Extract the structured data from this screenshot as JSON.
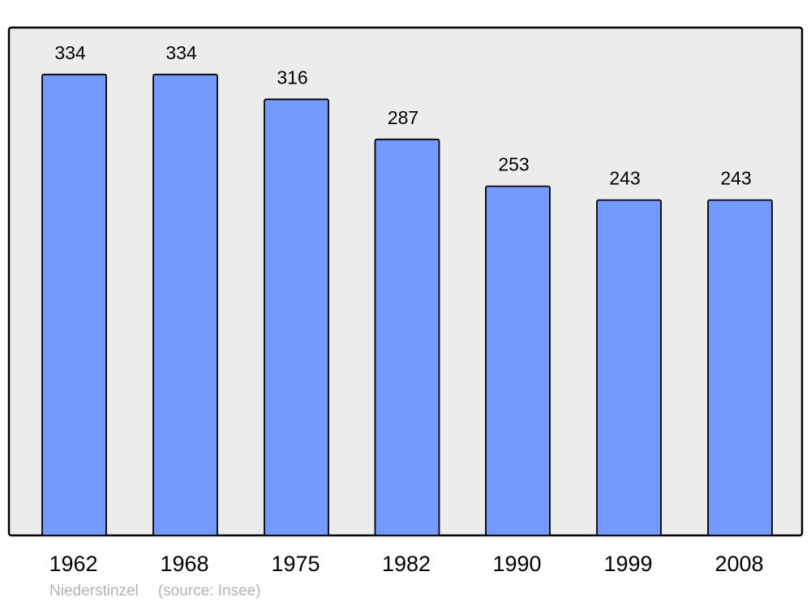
{
  "chart_data": {
    "type": "bar",
    "categories": [
      "1962",
      "1968",
      "1975",
      "1982",
      "1990",
      "1999",
      "2008"
    ],
    "values": [
      334,
      334,
      316,
      287,
      253,
      243,
      243
    ],
    "title": "",
    "xlabel": "",
    "ylabel": "",
    "ylim": [
      0,
      368
    ],
    "grid": false,
    "data_labels": true,
    "colors": {
      "bar": "#7499ff",
      "plot_background": "#ececec",
      "outline": "#000000"
    }
  },
  "caption": {
    "place": "Niederstinzel",
    "source": "(source: Insee)"
  }
}
